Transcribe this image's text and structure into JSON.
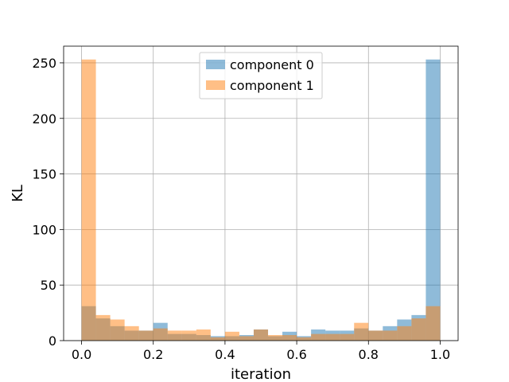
{
  "chart_data": {
    "type": "bar",
    "histogram": true,
    "xlabel": "iteration",
    "ylabel": "KL",
    "xlim": [
      -0.05,
      1.05
    ],
    "ylim": [
      0,
      265
    ],
    "xticks": [
      0.0,
      0.2,
      0.4,
      0.6,
      0.8,
      1.0
    ],
    "xtick_labels": [
      "0.0",
      "0.2",
      "0.4",
      "0.6",
      "0.8",
      "1.0"
    ],
    "yticks": [
      0,
      50,
      100,
      150,
      200,
      250
    ],
    "ytick_labels": [
      "0",
      "50",
      "100",
      "150",
      "200",
      "250"
    ],
    "grid": true,
    "legend_position": "upper center",
    "bin_start": 0.0,
    "bin_width": 0.04,
    "series": [
      {
        "name": "component 0",
        "color": "#1f77b4",
        "alpha": 0.5,
        "values": [
          31,
          20,
          13,
          9,
          9,
          16,
          6,
          6,
          5,
          4,
          4,
          5,
          10,
          4,
          8,
          4,
          10,
          9,
          9,
          11,
          9,
          13,
          19,
          23,
          253
        ]
      },
      {
        "name": "component 1",
        "color": "#ff7f0e",
        "alpha": 0.5,
        "values": [
          253,
          23,
          19,
          13,
          9,
          11,
          9,
          9,
          10,
          3,
          8,
          4,
          10,
          5,
          5,
          3,
          6,
          6,
          6,
          16,
          9,
          9,
          13,
          20,
          31
        ]
      }
    ]
  }
}
